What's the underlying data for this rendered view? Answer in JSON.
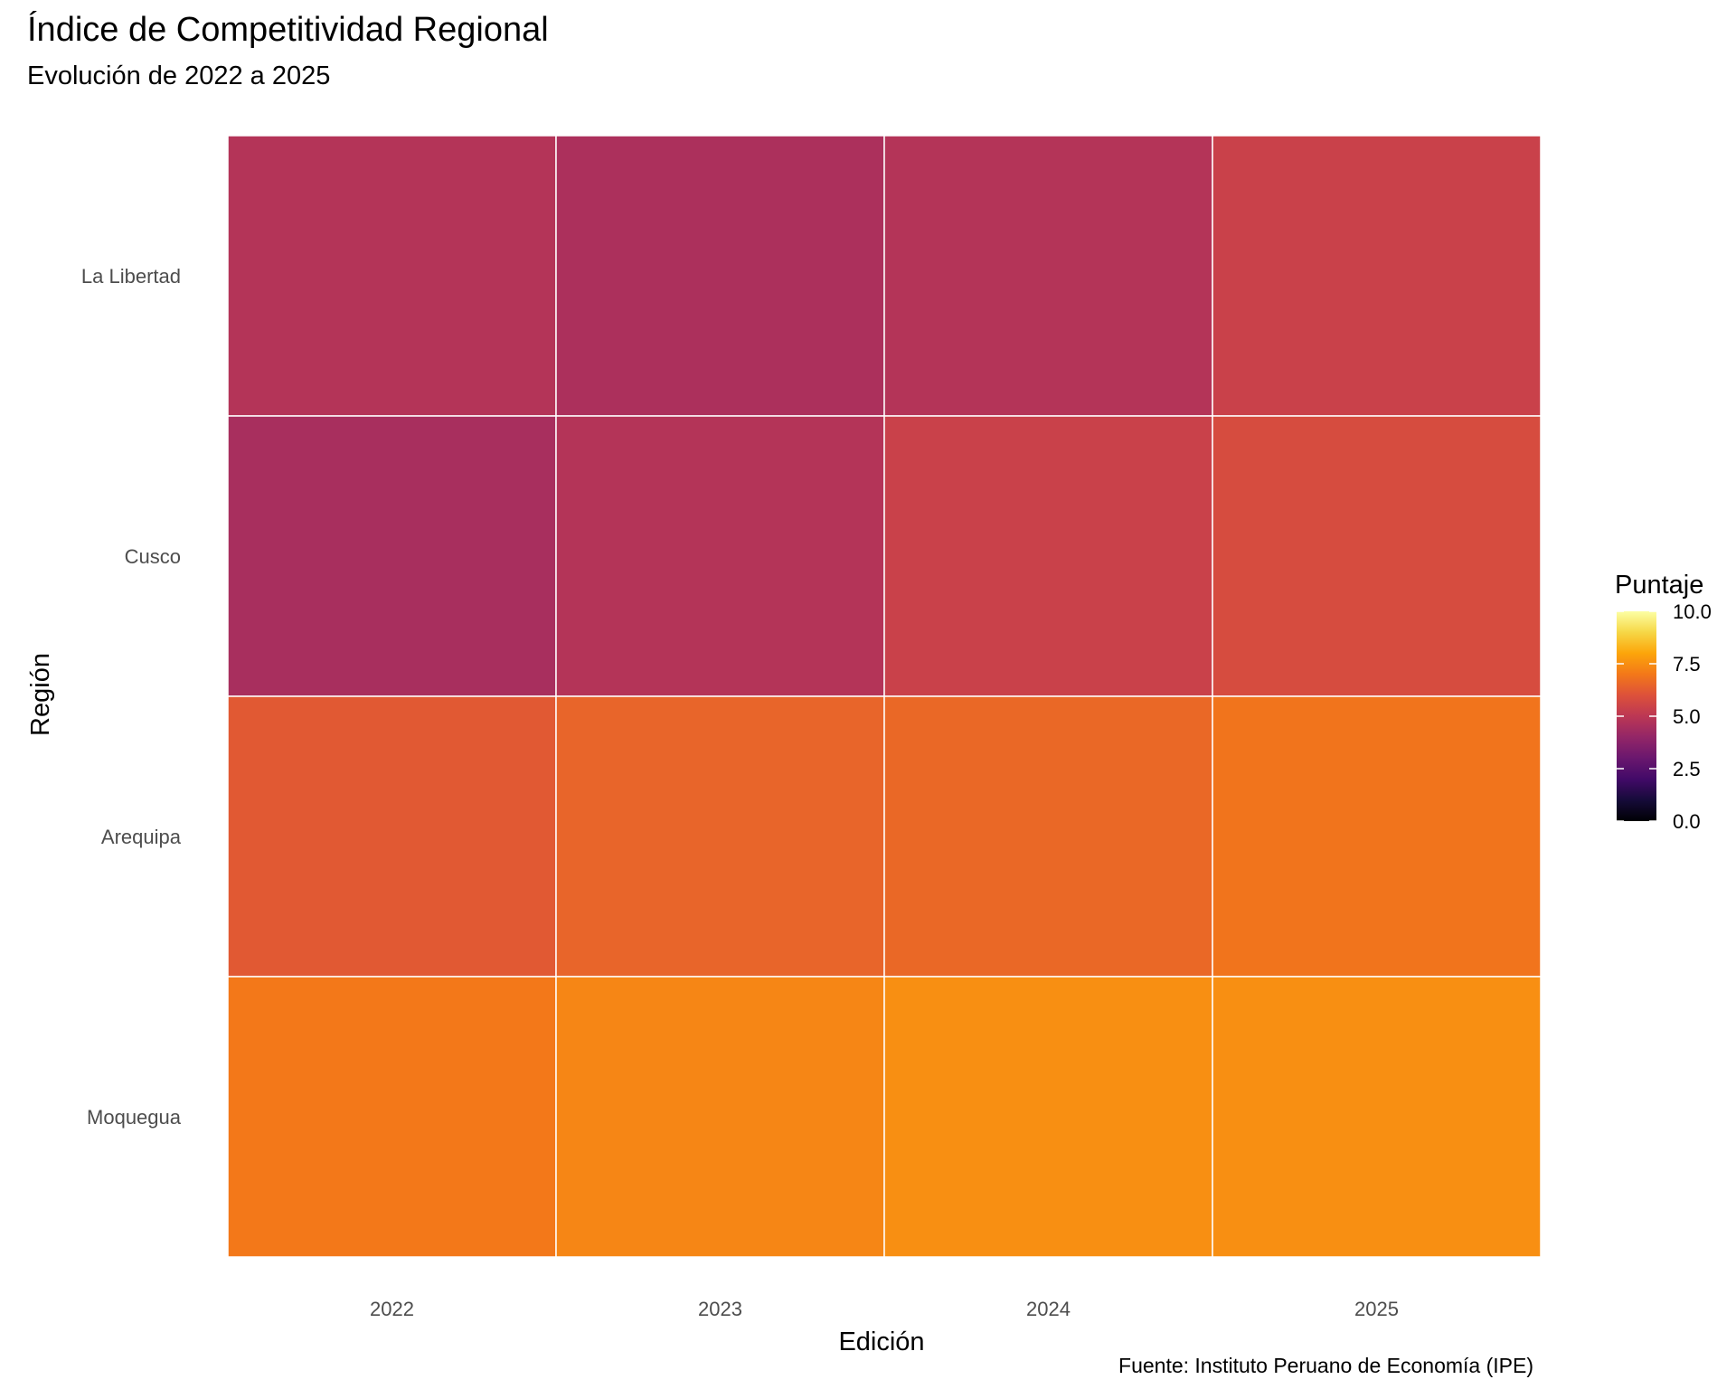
{
  "chart_data": {
    "type": "heatmap",
    "title": "Índice de Competitividad Regional",
    "subtitle": "Evolución de 2022 a 2025",
    "caption": "Fuente: Instituto Peruano de Economía (IPE)",
    "xlabel": "Edición",
    "ylabel": "Región",
    "x": [
      "2022",
      "2023",
      "2024",
      "2025"
    ],
    "y": [
      "La Libertad",
      "Cusco",
      "Arequipa",
      "Moquegua"
    ],
    "values": [
      [
        4.8,
        4.6,
        4.8,
        5.4
      ],
      [
        4.5,
        4.8,
        5.4,
        5.8
      ],
      [
        6.2,
        6.5,
        6.6,
        6.9
      ],
      [
        7.0,
        7.3,
        7.5,
        7.5
      ]
    ],
    "colorscale": "inferno",
    "legend": {
      "title": "Puntaje",
      "position": "right",
      "range": [
        0,
        10
      ],
      "ticks": [
        "0.0",
        "2.5",
        "5.0",
        "7.5",
        "10.0"
      ]
    },
    "grid": false
  }
}
